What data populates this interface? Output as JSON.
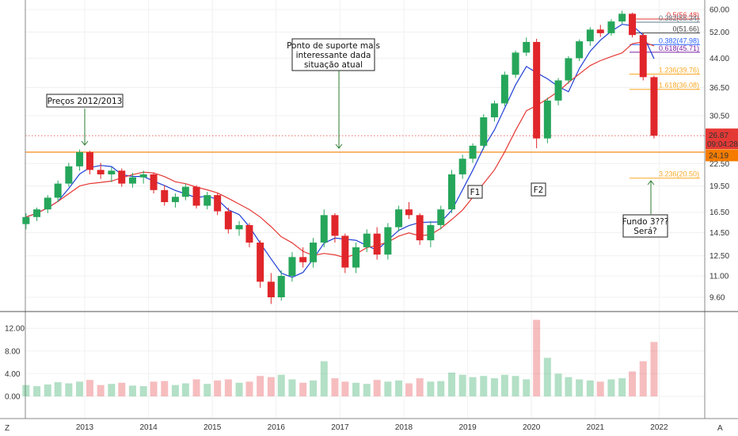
{
  "chart_data": {
    "type": "candlestick",
    "y_scale": "log",
    "price_ticks": [
      "60.00",
      "52.00",
      "44.00",
      "36.50",
      "30.50",
      "22.50",
      "19.50",
      "16.50",
      "14.50",
      "12.50",
      "11.00",
      "9.60"
    ],
    "volume_ticks": [
      "12.00",
      "8.00",
      "4.00",
      "0.00"
    ],
    "x_ticks": [
      "2013",
      "2014",
      "2015",
      "2016",
      "2017",
      "2018",
      "2019",
      "2020",
      "2021",
      "2022"
    ],
    "last_price": "26.87",
    "countdown": "09:04:28",
    "support_price_label": "24.19",
    "support_price": 24.19,
    "fib_levels": [
      {
        "label": "0.5(56.48)",
        "value": 56.48,
        "color": "#e53935"
      },
      {
        "label": "0.382(55.34)",
        "value": 55.34,
        "color": "#607d8b"
      },
      {
        "label": "0(51.66)",
        "value": 51.66,
        "color": "#444444"
      },
      {
        "label": "0.382(47.98)",
        "value": 47.98,
        "color": "#2962ff"
      },
      {
        "label": "0.618(45.71)",
        "value": 45.71,
        "color": "#7b1fa2"
      },
      {
        "label": "1.236(39.76)",
        "value": 39.76,
        "color": "#f9a825"
      },
      {
        "label": "1.618(36.08)",
        "value": 36.08,
        "color": "#f9a825"
      },
      {
        "label": "3.236(20.50)",
        "value": 20.5,
        "color": "#f9a825"
      }
    ],
    "annotations": [
      {
        "text": [
          "Preços 2012/2013"
        ]
      },
      {
        "text": [
          "Ponto de suporte mais",
          "interessante dada",
          "situação atual"
        ]
      },
      {
        "text": [
          "F1"
        ]
      },
      {
        "text": [
          "F2"
        ]
      },
      {
        "text": [
          "Fundo 3???",
          "Será?"
        ]
      }
    ],
    "axis_corner_left": "Z",
    "axis_corner_right": "A",
    "ohlc": [
      {
        "t": 2012.08,
        "o": 15.3,
        "h": 16.4,
        "l": 14.8,
        "c": 16.0,
        "v": 2.0
      },
      {
        "t": 2012.25,
        "o": 16.0,
        "h": 17.0,
        "l": 15.6,
        "c": 16.8,
        "v": 1.8
      },
      {
        "t": 2012.42,
        "o": 16.8,
        "h": 18.4,
        "l": 16.4,
        "c": 18.1,
        "v": 2.1
      },
      {
        "t": 2012.58,
        "o": 18.1,
        "h": 20.2,
        "l": 17.6,
        "c": 19.8,
        "v": 2.5
      },
      {
        "t": 2012.75,
        "o": 19.8,
        "h": 22.6,
        "l": 19.4,
        "c": 22.1,
        "v": 2.3
      },
      {
        "t": 2012.92,
        "o": 22.1,
        "h": 24.6,
        "l": 21.5,
        "c": 24.2,
        "v": 2.6
      },
      {
        "t": 2013.08,
        "o": 24.2,
        "h": 24.4,
        "l": 21.0,
        "c": 21.6,
        "v": 2.9
      },
      {
        "t": 2013.25,
        "o": 21.6,
        "h": 22.6,
        "l": 20.4,
        "c": 21.0,
        "v": 2.0
      },
      {
        "t": 2013.42,
        "o": 21.0,
        "h": 22.0,
        "l": 20.0,
        "c": 21.5,
        "v": 2.2
      },
      {
        "t": 2013.58,
        "o": 21.5,
        "h": 21.8,
        "l": 19.4,
        "c": 19.8,
        "v": 2.4
      },
      {
        "t": 2013.75,
        "o": 19.8,
        "h": 21.2,
        "l": 19.3,
        "c": 20.6,
        "v": 1.9
      },
      {
        "t": 2013.92,
        "o": 20.6,
        "h": 21.5,
        "l": 19.8,
        "c": 21.0,
        "v": 1.8
      },
      {
        "t": 2014.08,
        "o": 21.0,
        "h": 21.2,
        "l": 18.6,
        "c": 19.0,
        "v": 2.6
      },
      {
        "t": 2014.25,
        "o": 19.0,
        "h": 19.6,
        "l": 17.2,
        "c": 17.6,
        "v": 2.7
      },
      {
        "t": 2014.42,
        "o": 17.6,
        "h": 18.6,
        "l": 17.0,
        "c": 18.2,
        "v": 2.0
      },
      {
        "t": 2014.58,
        "o": 18.2,
        "h": 19.8,
        "l": 17.8,
        "c": 19.4,
        "v": 2.3
      },
      {
        "t": 2014.75,
        "o": 19.4,
        "h": 19.6,
        "l": 16.9,
        "c": 17.2,
        "v": 3.0
      },
      {
        "t": 2014.92,
        "o": 17.2,
        "h": 18.8,
        "l": 16.8,
        "c": 18.4,
        "v": 2.2
      },
      {
        "t": 2015.08,
        "o": 18.4,
        "h": 18.6,
        "l": 16.2,
        "c": 16.6,
        "v": 2.8
      },
      {
        "t": 2015.25,
        "o": 16.6,
        "h": 17.0,
        "l": 14.4,
        "c": 14.8,
        "v": 3.0
      },
      {
        "t": 2015.42,
        "o": 14.8,
        "h": 15.6,
        "l": 14.2,
        "c": 15.2,
        "v": 2.4
      },
      {
        "t": 2015.58,
        "o": 15.2,
        "h": 15.4,
        "l": 13.2,
        "c": 13.6,
        "v": 2.6
      },
      {
        "t": 2015.75,
        "o": 13.6,
        "h": 13.8,
        "l": 10.2,
        "c": 10.6,
        "v": 3.6
      },
      {
        "t": 2015.92,
        "o": 10.6,
        "h": 11.2,
        "l": 9.2,
        "c": 9.6,
        "v": 3.4
      },
      {
        "t": 2016.08,
        "o": 9.6,
        "h": 11.4,
        "l": 9.4,
        "c": 11.0,
        "v": 3.8
      },
      {
        "t": 2016.25,
        "o": 11.0,
        "h": 12.8,
        "l": 10.6,
        "c": 12.4,
        "v": 3.0
      },
      {
        "t": 2016.42,
        "o": 12.4,
        "h": 13.2,
        "l": 11.6,
        "c": 12.0,
        "v": 2.4
      },
      {
        "t": 2016.58,
        "o": 12.0,
        "h": 14.0,
        "l": 11.6,
        "c": 13.6,
        "v": 2.8
      },
      {
        "t": 2016.75,
        "o": 13.6,
        "h": 16.8,
        "l": 13.2,
        "c": 16.2,
        "v": 6.2
      },
      {
        "t": 2016.92,
        "o": 16.2,
        "h": 16.4,
        "l": 13.6,
        "c": 14.2,
        "v": 3.2
      },
      {
        "t": 2017.08,
        "o": 14.2,
        "h": 14.4,
        "l": 11.2,
        "c": 11.6,
        "v": 2.6
      },
      {
        "t": 2017.25,
        "o": 11.6,
        "h": 13.6,
        "l": 11.2,
        "c": 13.2,
        "v": 2.4
      },
      {
        "t": 2017.42,
        "o": 13.2,
        "h": 14.8,
        "l": 12.8,
        "c": 14.4,
        "v": 2.2
      },
      {
        "t": 2017.58,
        "o": 14.4,
        "h": 15.0,
        "l": 12.2,
        "c": 12.6,
        "v": 2.9
      },
      {
        "t": 2017.75,
        "o": 12.6,
        "h": 15.4,
        "l": 12.2,
        "c": 15.0,
        "v": 2.6
      },
      {
        "t": 2017.92,
        "o": 15.0,
        "h": 17.2,
        "l": 14.6,
        "c": 16.8,
        "v": 2.8
      },
      {
        "t": 2018.08,
        "o": 16.8,
        "h": 17.6,
        "l": 15.8,
        "c": 16.2,
        "v": 2.3
      },
      {
        "t": 2018.25,
        "o": 16.2,
        "h": 16.4,
        "l": 13.4,
        "c": 13.8,
        "v": 3.2
      },
      {
        "t": 2018.42,
        "o": 13.8,
        "h": 15.6,
        "l": 13.2,
        "c": 15.2,
        "v": 2.6
      },
      {
        "t": 2018.58,
        "o": 15.2,
        "h": 17.2,
        "l": 14.8,
        "c": 16.8,
        "v": 2.7
      },
      {
        "t": 2018.75,
        "o": 16.8,
        "h": 21.6,
        "l": 16.4,
        "c": 21.0,
        "v": 4.2
      },
      {
        "t": 2018.92,
        "o": 21.0,
        "h": 23.8,
        "l": 20.4,
        "c": 23.2,
        "v": 3.8
      },
      {
        "t": 2019.08,
        "o": 23.2,
        "h": 25.6,
        "l": 22.6,
        "c": 25.2,
        "v": 3.4
      },
      {
        "t": 2019.25,
        "o": 25.2,
        "h": 30.8,
        "l": 24.6,
        "c": 30.2,
        "v": 3.6
      },
      {
        "t": 2019.42,
        "o": 30.2,
        "h": 33.6,
        "l": 29.4,
        "c": 33.0,
        "v": 3.2
      },
      {
        "t": 2019.58,
        "o": 33.0,
        "h": 40.4,
        "l": 32.4,
        "c": 39.6,
        "v": 3.8
      },
      {
        "t": 2019.75,
        "o": 39.6,
        "h": 46.2,
        "l": 38.8,
        "c": 45.6,
        "v": 3.6
      },
      {
        "t": 2019.92,
        "o": 45.6,
        "h": 50.2,
        "l": 44.6,
        "c": 48.8,
        "v": 3.0
      },
      {
        "t": 2020.08,
        "o": 48.8,
        "h": 49.8,
        "l": 24.8,
        "c": 26.4,
        "v": 13.5
      },
      {
        "t": 2020.25,
        "o": 26.4,
        "h": 34.2,
        "l": 25.6,
        "c": 33.6,
        "v": 6.8
      },
      {
        "t": 2020.42,
        "o": 33.6,
        "h": 38.8,
        "l": 32.6,
        "c": 38.2,
        "v": 4.0
      },
      {
        "t": 2020.58,
        "o": 38.2,
        "h": 44.6,
        "l": 37.4,
        "c": 44.0,
        "v": 3.4
      },
      {
        "t": 2020.75,
        "o": 44.0,
        "h": 49.6,
        "l": 43.2,
        "c": 49.0,
        "v": 3.0
      },
      {
        "t": 2020.92,
        "o": 49.0,
        "h": 53.6,
        "l": 47.6,
        "c": 52.8,
        "v": 2.8
      },
      {
        "t": 2021.08,
        "o": 52.8,
        "h": 54.4,
        "l": 50.4,
        "c": 51.6,
        "v": 2.6
      },
      {
        "t": 2021.25,
        "o": 51.6,
        "h": 56.4,
        "l": 50.8,
        "c": 55.6,
        "v": 3.0
      },
      {
        "t": 2021.42,
        "o": 55.6,
        "h": 59.6,
        "l": 54.8,
        "c": 58.4,
        "v": 3.2
      },
      {
        "t": 2021.58,
        "o": 58.4,
        "h": 58.8,
        "l": 50.2,
        "c": 51.0,
        "v": 4.4
      },
      {
        "t": 2021.75,
        "o": 51.0,
        "h": 51.6,
        "l": 38.2,
        "c": 39.0,
        "v": 6.2
      },
      {
        "t": 2021.92,
        "o": 39.0,
        "h": 39.4,
        "l": 26.4,
        "c": 26.87,
        "v": 9.6
      }
    ]
  }
}
